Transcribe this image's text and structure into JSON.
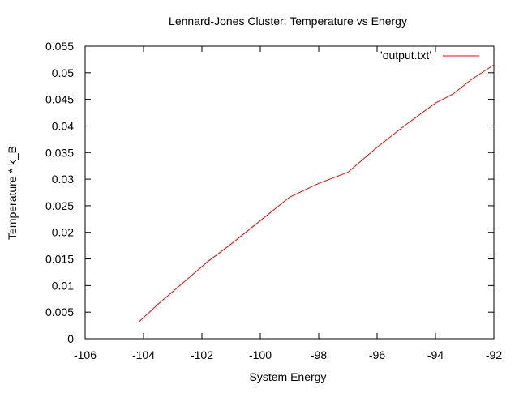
{
  "chart_data": {
    "type": "line",
    "title": "Lennard-Jones Cluster: Temperature vs Energy",
    "xlabel": "System Energy",
    "ylabel": "Temperature * k_B",
    "xlim": [
      -106,
      -92
    ],
    "ylim": [
      0,
      0.055
    ],
    "x_ticks": [
      -106,
      -104,
      -102,
      -100,
      -98,
      -96,
      -94,
      -92
    ],
    "x_tick_labels": [
      "-106",
      "-104",
      "-102",
      "-100",
      "-98",
      "-96",
      "-94",
      "-92"
    ],
    "y_ticks": [
      0,
      0.005,
      0.01,
      0.015,
      0.02,
      0.025,
      0.03,
      0.035,
      0.04,
      0.045,
      0.05,
      0.055
    ],
    "y_tick_labels": [
      "0",
      "0.005",
      "0.01",
      "0.015",
      "0.02",
      "0.025",
      "0.03",
      "0.035",
      "0.04",
      "0.045",
      "0.05",
      "0.055"
    ],
    "grid": false,
    "legend_position": "top-right",
    "series": [
      {
        "name": "'output.txt'",
        "color": "#ff0000",
        "x": [
          -104.15,
          -103.5,
          -102.5,
          -101.8,
          -101.0,
          -100.0,
          -99.0,
          -98.0,
          -97.0,
          -96.0,
          -95.0,
          -94.0,
          -93.4,
          -92.8,
          -92.0
        ],
        "y": [
          0.0032,
          0.0065,
          0.0112,
          0.0145,
          0.0178,
          0.0222,
          0.0266,
          0.0292,
          0.0313,
          0.036,
          0.0403,
          0.0443,
          0.046,
          0.0486,
          0.0515
        ]
      }
    ]
  }
}
